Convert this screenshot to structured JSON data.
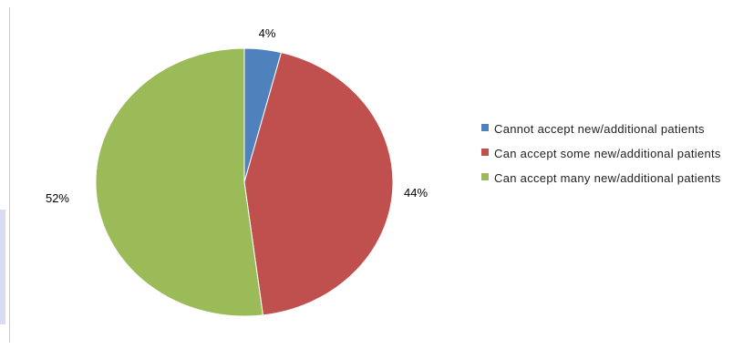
{
  "chart_data": {
    "type": "pie",
    "title": "",
    "slices": [
      {
        "label": "Cannot accept new/additional patients",
        "value": 4,
        "display": "4%",
        "color": "#4f81bd"
      },
      {
        "label": "Can accept some new/additional patients",
        "value": 44,
        "display": "44%",
        "color": "#c0504d"
      },
      {
        "label": "Can accept many new/additional patients",
        "value": 52,
        "display": "52%",
        "color": "#9bbb59"
      }
    ],
    "legend_position": "right"
  }
}
